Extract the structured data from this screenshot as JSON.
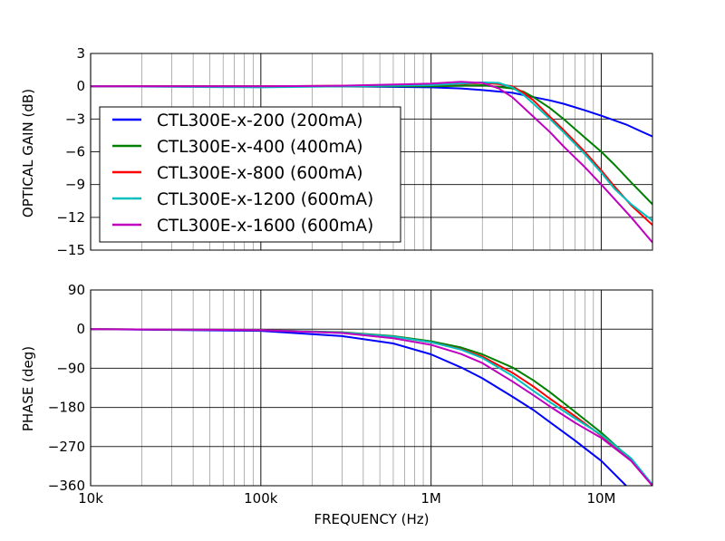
{
  "chart_data": [
    {
      "type": "line",
      "title": "",
      "xlabel": "",
      "ylabel": "OPTICAL GAIN (dB)",
      "xscale": "log",
      "xlim": [
        10000,
        20000000
      ],
      "ylim": [
        -15,
        3
      ],
      "yticks": [
        3,
        0,
        -3,
        -6,
        -9,
        -12,
        -15
      ],
      "ytick_labels": [
        "3",
        "0",
        "−3",
        "−6",
        "−9",
        "−12",
        "−15"
      ],
      "grid": "major and minor x, major y",
      "legend": "lower-left",
      "series": [
        {
          "name": "CTL300E-x-200 (200mA)",
          "color": "#0000ff",
          "x": [
            10000,
            30000,
            100000,
            300000,
            1000000,
            1500000,
            2000000,
            3000000,
            4000000,
            5000000,
            6000000,
            8000000,
            10000000,
            14000000,
            17000000,
            20000000
          ],
          "y": [
            0,
            0,
            0,
            0,
            -0.1,
            -0.2,
            -0.35,
            -0.6,
            -1.0,
            -1.3,
            -1.6,
            -2.2,
            -2.7,
            -3.5,
            -4.1,
            -4.6
          ]
        },
        {
          "name": "CTL300E-x-400 (400mA)",
          "color": "#008000",
          "x": [
            10000,
            100000,
            1000000,
            1500000,
            2000000,
            3000000,
            3500000,
            4000000,
            5000000,
            6000000,
            8000000,
            10000000,
            12000000,
            15000000,
            20000000
          ],
          "y": [
            0,
            0,
            0,
            0.05,
            0.1,
            -0.2,
            -0.5,
            -1.0,
            -2.0,
            -3.0,
            -4.7,
            -6.0,
            -7.2,
            -8.8,
            -10.8
          ]
        },
        {
          "name": "CTL300E-x-800 (600mA)",
          "color": "#ff0000",
          "x": [
            10000,
            100000,
            1000000,
            1500000,
            2000000,
            2500000,
            3000000,
            3500000,
            4000000,
            5000000,
            6000000,
            8000000,
            10000000,
            12000000,
            15000000,
            20000000
          ],
          "y": [
            0,
            0,
            0.1,
            0.2,
            0.3,
            0.2,
            0,
            -0.6,
            -1.3,
            -2.8,
            -4.0,
            -6.0,
            -7.7,
            -9.2,
            -10.9,
            -12.7
          ]
        },
        {
          "name": "CTL300E-x-1200 (600mA)",
          "color": "#00bfbf",
          "x": [
            10000,
            100000,
            1000000,
            1500000,
            2000000,
            2500000,
            3000000,
            3500000,
            4000000,
            5000000,
            6000000,
            8000000,
            10000000,
            12000000,
            15000000,
            20000000
          ],
          "y": [
            0,
            -0.1,
            0.1,
            0.25,
            0.35,
            0.3,
            -0.1,
            -0.8,
            -1.6,
            -3.0,
            -4.2,
            -6.2,
            -7.9,
            -9.4,
            -10.8,
            -12.3
          ]
        },
        {
          "name": "CTL300E-x-1600 (600mA)",
          "color": "#bf00bf",
          "x": [
            10000,
            100000,
            300000,
            800000,
            1000000,
            1500000,
            2000000,
            2500000,
            3000000,
            4000000,
            5000000,
            6000000,
            8000000,
            10000000,
            15000000,
            20000000
          ],
          "y": [
            0,
            0,
            0.05,
            0.2,
            0.25,
            0.4,
            0.3,
            -0.2,
            -1.0,
            -2.8,
            -4.2,
            -5.5,
            -7.4,
            -9.0,
            -12.0,
            -14.3
          ]
        }
      ]
    },
    {
      "type": "line",
      "title": "",
      "xlabel": "FREQUENCY (Hz)",
      "ylabel": "PHASE (deg)",
      "xscale": "log",
      "xlim": [
        10000,
        20000000
      ],
      "ylim": [
        -360,
        90
      ],
      "xticks": [
        10000,
        100000,
        1000000,
        10000000
      ],
      "xtick_labels": [
        "10k",
        "100k",
        "1M",
        "10M"
      ],
      "yticks": [
        90,
        0,
        -90,
        -180,
        -270,
        -360
      ],
      "ytick_labels": [
        "90",
        "0",
        "−90",
        "−180",
        "−270",
        "−360"
      ],
      "grid": "major and minor x, major y",
      "series": [
        {
          "color": "#0000ff",
          "x": [
            10000,
            100000,
            300000,
            600000,
            1000000,
            1500000,
            2000000,
            3000000,
            4000000,
            5000000,
            7000000,
            10000000,
            14000000
          ],
          "y": [
            0,
            -4,
            -16,
            -33,
            -58,
            -88,
            -113,
            -155,
            -186,
            -214,
            -256,
            -303,
            -360
          ]
        },
        {
          "color": "#008000",
          "x": [
            10000,
            100000,
            300000,
            600000,
            1000000,
            1500000,
            2000000,
            3000000,
            4000000,
            5000000,
            7000000,
            10000000,
            15000000,
            20000000
          ],
          "y": [
            0,
            -2,
            -7,
            -16,
            -28,
            -42,
            -58,
            -88,
            -118,
            -145,
            -190,
            -238,
            -300,
            -360
          ]
        },
        {
          "color": "#ff0000",
          "x": [
            10000,
            100000,
            300000,
            600000,
            1000000,
            1500000,
            2000000,
            3000000,
            4000000,
            5000000,
            7000000,
            10000000,
            15000000,
            20000000
          ],
          "y": [
            0,
            -2,
            -8,
            -17,
            -30,
            -46,
            -63,
            -100,
            -132,
            -160,
            -200,
            -245,
            -303,
            -360
          ]
        },
        {
          "color": "#00bfbf",
          "x": [
            10000,
            100000,
            300000,
            600000,
            1000000,
            1500000,
            2000000,
            3000000,
            4000000,
            5000000,
            7000000,
            10000000,
            15000000,
            20000000
          ],
          "y": [
            0,
            -2,
            -8,
            -17,
            -30,
            -47,
            -66,
            -107,
            -142,
            -168,
            -205,
            -243,
            -297,
            -358
          ]
        },
        {
          "color": "#bf00bf",
          "x": [
            10000,
            100000,
            300000,
            600000,
            1000000,
            1500000,
            2000000,
            3000000,
            4000000,
            5000000,
            7000000,
            10000000,
            15000000,
            20000000
          ],
          "y": [
            0,
            -2,
            -9,
            -21,
            -36,
            -57,
            -78,
            -120,
            -152,
            -178,
            -215,
            -250,
            -303,
            -360
          ]
        }
      ]
    }
  ]
}
